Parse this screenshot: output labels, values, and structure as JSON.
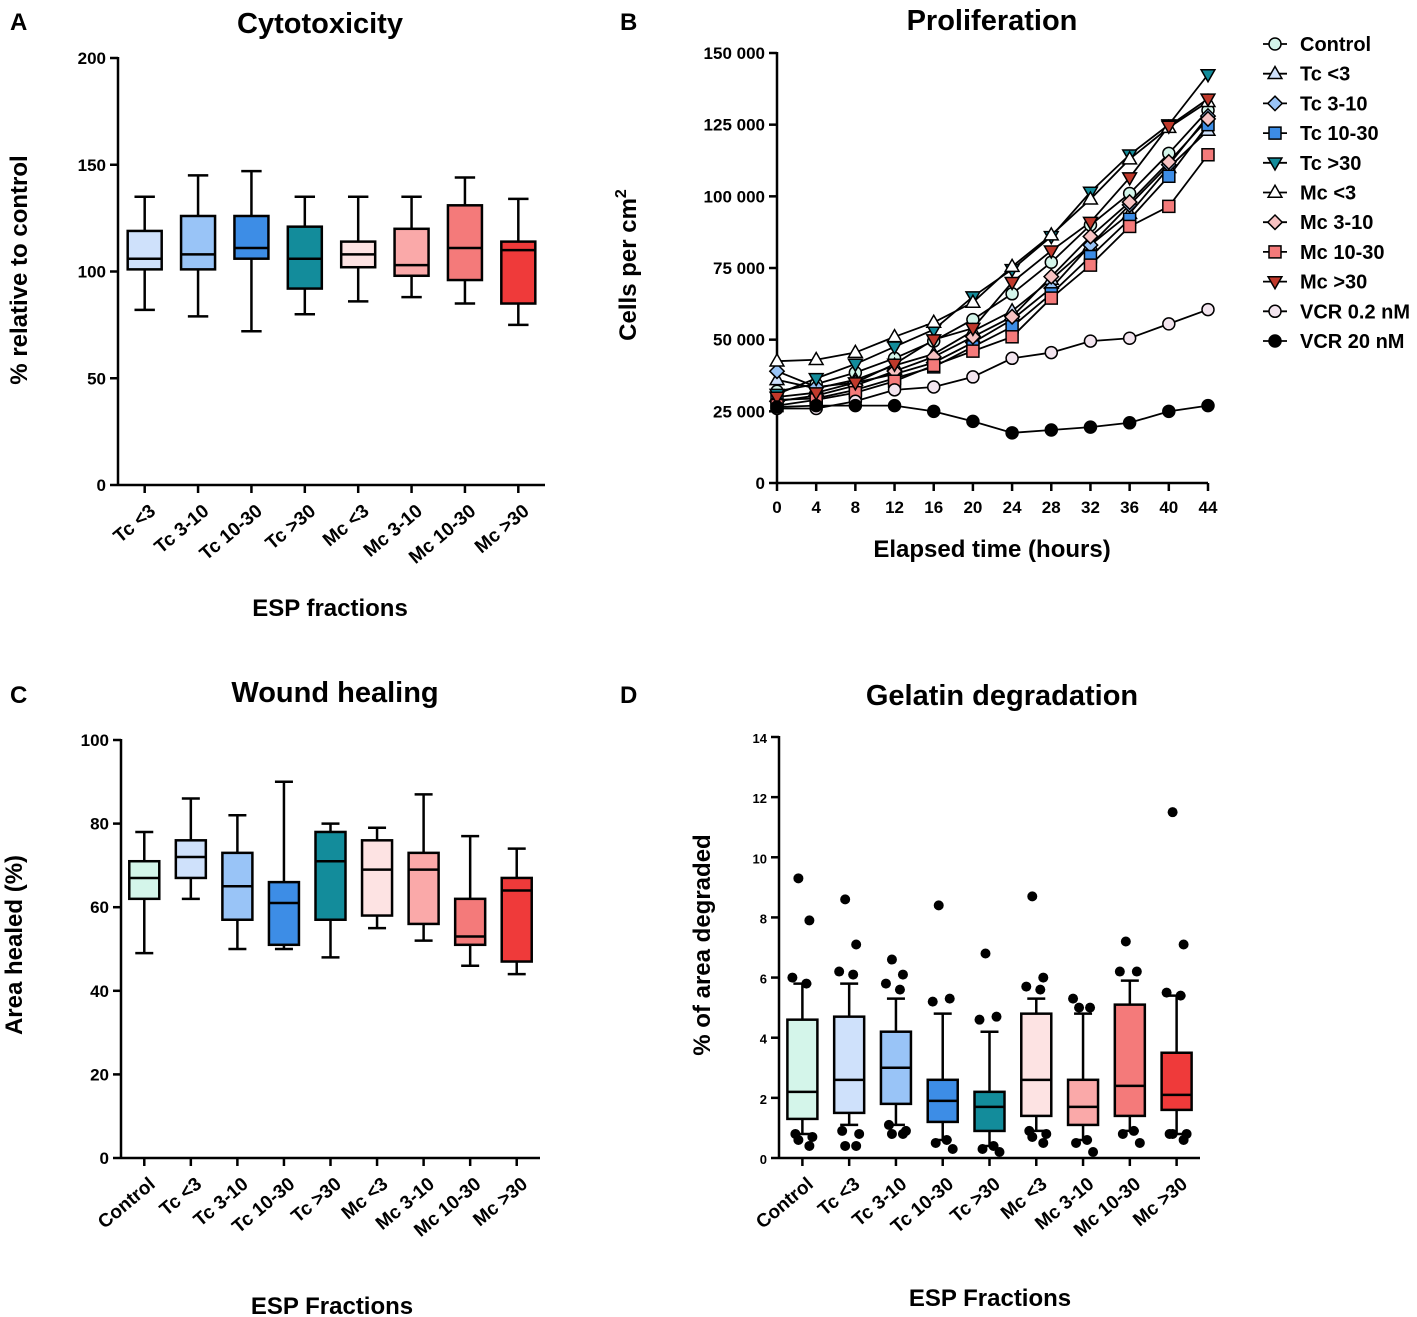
{
  "panels": {
    "A": "A",
    "B": "B",
    "C": "C",
    "D": "D"
  },
  "chart_data": [
    {
      "id": "A",
      "type": "box",
      "title": "Cytotoxicity",
      "xlabel": "ESP fractions",
      "ylabel": "% relative to control",
      "ylim": [
        0,
        200
      ],
      "yticks": [
        0,
        50,
        100,
        150,
        200
      ],
      "categories": [
        "Tc <3",
        "Tc 3-10",
        "Tc 10-30",
        "Tc >30",
        "Mc <3",
        "Mc 3-10",
        "Mc 10-30",
        "Mc >30"
      ],
      "colors": [
        "#cfe1fb",
        "#99c4f7",
        "#3d8de6",
        "#138c9b",
        "#fde3e3",
        "#faa9a9",
        "#f47a7a",
        "#ef3a3a"
      ],
      "boxes": [
        {
          "min": 82,
          "q1": 101,
          "median": 106,
          "q3": 119,
          "max": 135
        },
        {
          "min": 79,
          "q1": 101,
          "median": 108,
          "q3": 126,
          "max": 145
        },
        {
          "min": 72,
          "q1": 106,
          "median": 111,
          "q3": 126,
          "max": 147
        },
        {
          "min": 80,
          "q1": 92,
          "median": 106,
          "q3": 121,
          "max": 135
        },
        {
          "min": 86,
          "q1": 102,
          "median": 108,
          "q3": 114,
          "max": 135
        },
        {
          "min": 88,
          "q1": 98,
          "median": 103,
          "q3": 120,
          "max": 135
        },
        {
          "min": 85,
          "q1": 96,
          "median": 111,
          "q3": 131,
          "max": 144
        },
        {
          "min": 75,
          "q1": 85,
          "median": 110,
          "q3": 114,
          "max": 134
        }
      ]
    },
    {
      "id": "B",
      "type": "line",
      "title": "Proliferation",
      "xlabel": "Elapsed time (hours)",
      "ylabel": "Cells per cm",
      "ylabel_sup": "2",
      "xlim": [
        0,
        44
      ],
      "ylim": [
        0,
        150000
      ],
      "xticks": [
        0,
        4,
        8,
        12,
        16,
        20,
        24,
        28,
        32,
        36,
        40,
        44
      ],
      "yticks": [
        0,
        25000,
        50000,
        75000,
        100000,
        125000,
        150000
      ],
      "ytick_labels": [
        "0",
        "25 000",
        "50 000",
        "75 000",
        "100 000",
        "125 000",
        "150 000"
      ],
      "x": [
        0,
        4,
        8,
        12,
        16,
        20,
        24,
        28,
        32,
        36,
        40,
        44
      ],
      "series": [
        {
          "name": "Control",
          "marker": "circle",
          "color": "#d4f5ea",
          "values": [
            32000,
            34500,
            38500,
            43500,
            49500,
            57000,
            66000,
            77000,
            90000,
            101000,
            115000,
            130000
          ]
        },
        {
          "name": "Tc <3",
          "marker": "triangle-up",
          "color": "#cfe1fb",
          "values": [
            36000,
            33000,
            36000,
            41000,
            45000,
            53000,
            60000,
            71000,
            83000,
            94000,
            110000,
            123000
          ]
        },
        {
          "name": "Tc 3-10",
          "marker": "diamond",
          "color": "#99c4f7",
          "values": [
            39000,
            33500,
            35000,
            38000,
            42000,
            49000,
            57000,
            68000,
            83000,
            97000,
            111000,
            128000
          ]
        },
        {
          "name": "Tc 10-30",
          "marker": "square",
          "color": "#3d8de6",
          "values": [
            29000,
            29500,
            32500,
            36500,
            40500,
            47500,
            54500,
            66000,
            79000,
            92000,
            107000,
            125000
          ]
        },
        {
          "name": "Tc >30",
          "marker": "triangle-down",
          "color": "#138c9b",
          "values": [
            31000,
            36500,
            41500,
            47500,
            53500,
            65000,
            74500,
            86000,
            101500,
            114500,
            125000,
            142500
          ]
        },
        {
          "name": "Mc <3",
          "marker": "triangle-up",
          "color": "#ffffff",
          "values": [
            42500,
            43000,
            45500,
            51000,
            56000,
            63000,
            75500,
            86500,
            99000,
            113000,
            124000,
            133000
          ]
        },
        {
          "name": "Mc 3-10",
          "marker": "diamond",
          "color": "#f7c2c2",
          "values": [
            28500,
            30500,
            34000,
            39000,
            44000,
            51000,
            58000,
            72000,
            86000,
            98000,
            112000,
            127000
          ]
        },
        {
          "name": "Mc 10-30",
          "marker": "square",
          "color": "#f47a7a",
          "values": [
            27000,
            29000,
            31500,
            35500,
            41000,
            46000,
            51000,
            64500,
            76000,
            89500,
            96500,
            114500
          ]
        },
        {
          "name": "Mc >30",
          "marker": "triangle-down",
          "color": "#c0392b",
          "values": [
            30000,
            31500,
            35000,
            41500,
            50000,
            54000,
            70000,
            81000,
            91000,
            106500,
            124500,
            134000
          ]
        },
        {
          "name": "VCR 0.2 nM",
          "marker": "circle",
          "color": "#f3e5ef",
          "values": [
            26000,
            26000,
            28500,
            32500,
            33500,
            37000,
            43500,
            45500,
            49500,
            50500,
            55500,
            60500
          ]
        },
        {
          "name": "VCR 20 nM",
          "marker": "circle",
          "color": "#000000",
          "values": [
            26500,
            27000,
            27000,
            27000,
            25000,
            21500,
            17500,
            18500,
            19500,
            21000,
            25000,
            27000
          ]
        }
      ]
    },
    {
      "id": "C",
      "type": "box",
      "title": "Wound healing",
      "xlabel": "ESP Fractions",
      "ylabel": "Area healed (%)",
      "ylim": [
        0,
        100
      ],
      "yticks": [
        0,
        20,
        40,
        60,
        80,
        100
      ],
      "categories": [
        "Control",
        "Tc <3",
        "Tc 3-10",
        "Tc 10-30",
        "Tc >30",
        "Mc <3",
        "Mc 3-10",
        "Mc 10-30",
        "Mc >30"
      ],
      "colors": [
        "#d4f5ea",
        "#cfe1fb",
        "#99c4f7",
        "#3d8de6",
        "#138c9b",
        "#fde3e3",
        "#faa9a9",
        "#f47a7a",
        "#ef3a3a"
      ],
      "boxes": [
        {
          "min": 49,
          "q1": 62,
          "median": 67,
          "q3": 71,
          "max": 78
        },
        {
          "min": 62,
          "q1": 67,
          "median": 72,
          "q3": 76,
          "max": 86
        },
        {
          "min": 50,
          "q1": 57,
          "median": 65,
          "q3": 73,
          "max": 82
        },
        {
          "min": 50,
          "q1": 51,
          "median": 61,
          "q3": 66,
          "max": 90
        },
        {
          "min": 48,
          "q1": 57,
          "median": 71,
          "q3": 78,
          "max": 80
        },
        {
          "min": 55,
          "q1": 58,
          "median": 69,
          "q3": 76,
          "max": 79
        },
        {
          "min": 52,
          "q1": 56,
          "median": 69,
          "q3": 73,
          "max": 87
        },
        {
          "min": 46,
          "q1": 51,
          "median": 53,
          "q3": 62,
          "max": 77
        },
        {
          "min": 44,
          "q1": 47,
          "median": 64,
          "q3": 67,
          "max": 74
        }
      ]
    },
    {
      "id": "D",
      "type": "box",
      "title": "Gelatin degradation",
      "xlabel": "ESP Fractions",
      "ylabel": "% of area degraded",
      "ylim": [
        0,
        14
      ],
      "yticks": [
        0,
        2,
        4,
        6,
        8,
        10,
        12,
        14
      ],
      "categories": [
        "Control",
        "Tc <3",
        "Tc 3-10",
        "Tc 10-30",
        "Tc >30",
        "Mc <3",
        "Mc 3-10",
        "Mc 10-30",
        "Mc >30"
      ],
      "colors": [
        "#d4f5ea",
        "#cfe1fb",
        "#99c4f7",
        "#3d8de6",
        "#138c9b",
        "#fde3e3",
        "#faa9a9",
        "#f47a7a",
        "#ef3a3a"
      ],
      "boxes": [
        {
          "min": 0.8,
          "q1": 1.3,
          "median": 2.2,
          "q3": 4.6,
          "max": 5.8,
          "outliers": [
            9.3,
            7.9,
            6.0,
            5.8,
            0.8,
            0.7,
            0.6,
            0.4
          ]
        },
        {
          "min": 1.1,
          "q1": 1.5,
          "median": 2.6,
          "q3": 4.7,
          "max": 5.8,
          "outliers": [
            8.6,
            7.1,
            6.2,
            6.1,
            0.9,
            0.8,
            0.4,
            0.4
          ]
        },
        {
          "min": 1.1,
          "q1": 1.8,
          "median": 3.0,
          "q3": 4.2,
          "max": 5.3,
          "outliers": [
            6.6,
            6.1,
            5.8,
            5.6,
            1.1,
            0.9,
            0.8,
            0.8
          ]
        },
        {
          "min": 0.6,
          "q1": 1.2,
          "median": 1.9,
          "q3": 2.6,
          "max": 4.8,
          "outliers": [
            8.4,
            5.3,
            5.2,
            0.6,
            0.5,
            0.3
          ]
        },
        {
          "min": 0.4,
          "q1": 0.9,
          "median": 1.7,
          "q3": 2.2,
          "max": 4.2,
          "outliers": [
            6.8,
            4.7,
            4.6,
            0.4,
            0.3,
            0.2
          ]
        },
        {
          "min": 0.9,
          "q1": 1.4,
          "median": 2.6,
          "q3": 4.8,
          "max": 5.3,
          "outliers": [
            8.7,
            6.0,
            5.7,
            5.6,
            0.9,
            0.8,
            0.7,
            0.5
          ]
        },
        {
          "min": 0.6,
          "q1": 1.1,
          "median": 1.7,
          "q3": 2.6,
          "max": 4.8,
          "outliers": [
            5.0,
            5.0,
            5.3,
            0.6,
            0.5,
            0.2
          ]
        },
        {
          "min": 0.9,
          "q1": 1.4,
          "median": 2.4,
          "q3": 5.1,
          "max": 5.9,
          "outliers": [
            7.2,
            6.2,
            6.2,
            0.9,
            0.8,
            0.5
          ]
        },
        {
          "min": 0.8,
          "q1": 1.6,
          "median": 2.1,
          "q3": 3.5,
          "max": 5.4,
          "outliers": [
            11.5,
            7.1,
            5.5,
            5.4,
            0.8,
            0.8,
            0.8,
            0.6
          ]
        }
      ]
    }
  ]
}
